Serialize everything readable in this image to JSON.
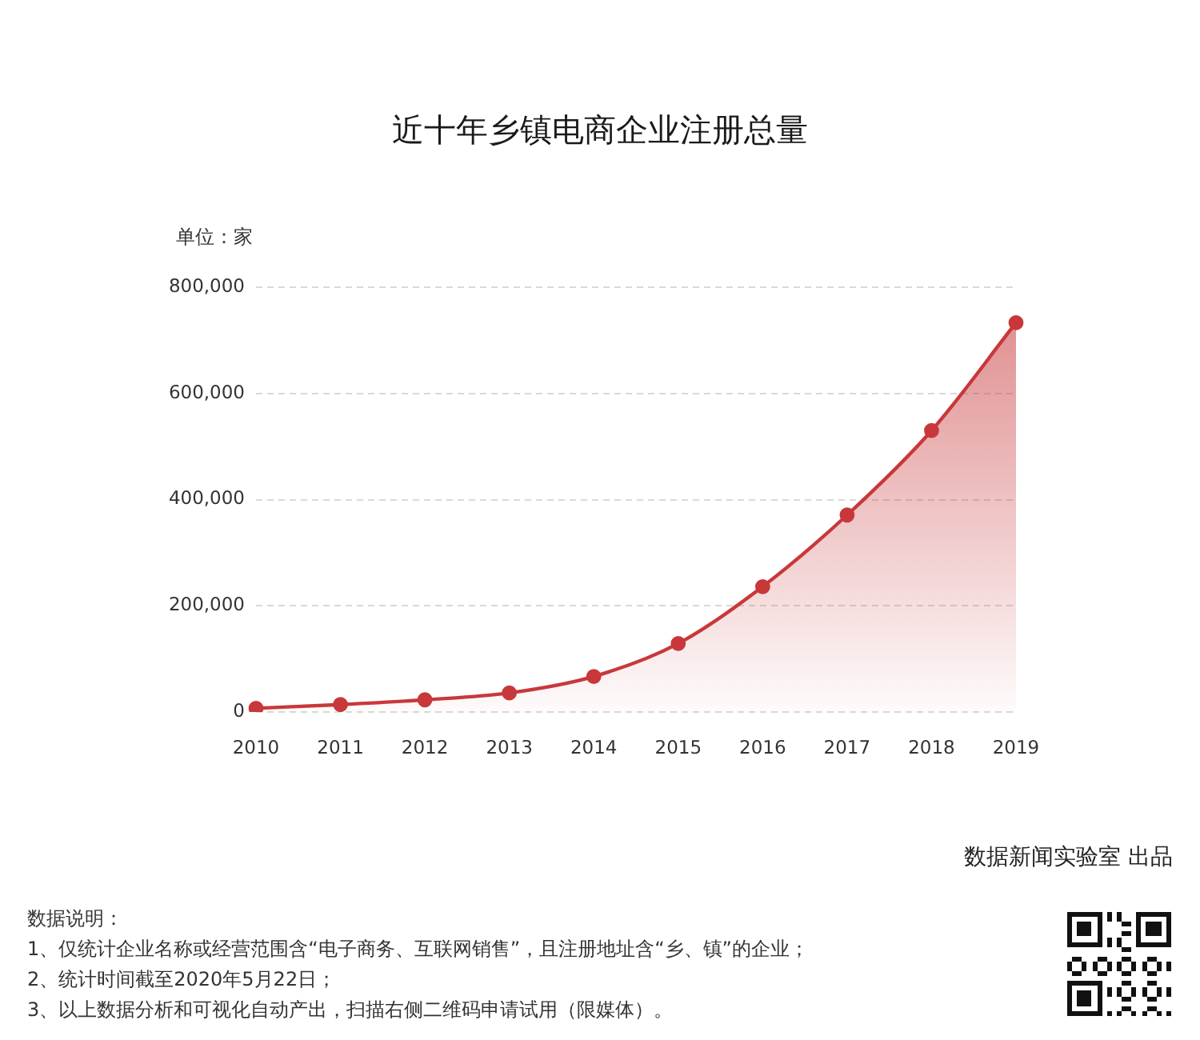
{
  "chart_data": {
    "type": "area",
    "title": "近十年乡镇电商企业注册总量",
    "ylabel": "单位：家",
    "categories": [
      "2010",
      "2011",
      "2012",
      "2013",
      "2014",
      "2015",
      "2016",
      "2017",
      "2018",
      "2019"
    ],
    "values": [
      7000,
      14000,
      23000,
      36000,
      67000,
      129000,
      236000,
      371000,
      530000,
      733000
    ],
    "color": "#c8383b",
    "ylim": [
      0,
      800000
    ],
    "yticks": [
      {
        "value": 0,
        "label": "0"
      },
      {
        "value": 200000,
        "label": "200,000"
      },
      {
        "value": 400000,
        "label": "400,000"
      },
      {
        "value": 600000,
        "label": "600,000"
      },
      {
        "value": 800000,
        "label": "800,000"
      }
    ],
    "grid": "y",
    "legend": false,
    "marker": "circle",
    "annotations": [
      "数据新闻实验室 出品",
      "数据说明：",
      "1、仅统计企业名称或经营范围含“电子商务、互联网销售”，且注册地址含“乡、镇”的企业；",
      "2、统计时间截至2020年5月22日；",
      "3、以上数据分析和可视化自动产出，扫描右侧二维码申请试用（限媒体）。"
    ]
  }
}
